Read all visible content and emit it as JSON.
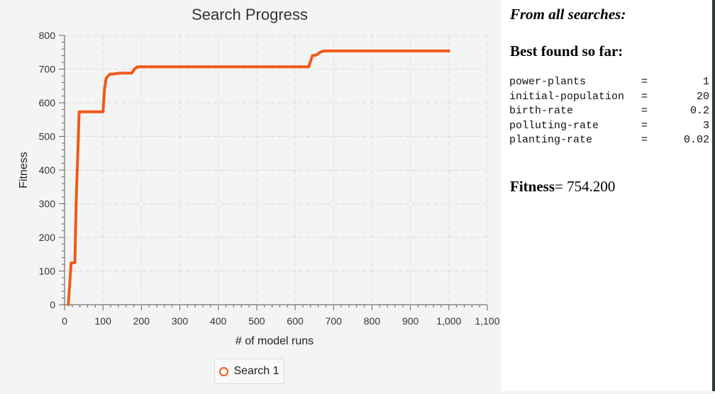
{
  "chart_data": {
    "type": "line",
    "title": "Search Progress",
    "xlabel": "# of model runs",
    "ylabel": "Fitness",
    "xlim": [
      0,
      1100
    ],
    "ylim": [
      0,
      800
    ],
    "x_ticks": [
      "0",
      "100",
      "200",
      "300",
      "400",
      "500",
      "600",
      "700",
      "800",
      "900",
      "1,000",
      "1,100"
    ],
    "y_ticks": [
      "0",
      "100",
      "200",
      "300",
      "400",
      "500",
      "600",
      "700",
      "800"
    ],
    "grid": true,
    "legend_position": "bottom",
    "series": [
      {
        "name": "Search 1",
        "color": "#f05a1a",
        "x": [
          10,
          17,
          27,
          30,
          38,
          100,
          104,
          108,
          112,
          118,
          125,
          135,
          145,
          155,
          175,
          182,
          190,
          200,
          300,
          400,
          500,
          600,
          635,
          645,
          655,
          665,
          675,
          700,
          800,
          900,
          1000
        ],
        "y": [
          0,
          124,
          125,
          300,
          573,
          573,
          640,
          672,
          678,
          685,
          685,
          687,
          688,
          688,
          688,
          700,
          707,
          707,
          707,
          707,
          707,
          707,
          707,
          740,
          742,
          750,
          754,
          754,
          754,
          754,
          754
        ]
      }
    ]
  },
  "info": {
    "heading_all": "From all searches:",
    "heading_best": "Best found so far:",
    "params": [
      {
        "name": "power-plants",
        "eq": "=",
        "value": "1"
      },
      {
        "name": "initial-population",
        "eq": "=",
        "value": "20"
      },
      {
        "name": "birth-rate",
        "eq": "=",
        "value": "0.2"
      },
      {
        "name": "polluting-rate",
        "eq": "=",
        "value": "3"
      },
      {
        "name": "planting-rate",
        "eq": "=",
        "value": "0.02"
      }
    ],
    "fitness_label": "Fitness",
    "fitness_value": "= 754.200"
  }
}
